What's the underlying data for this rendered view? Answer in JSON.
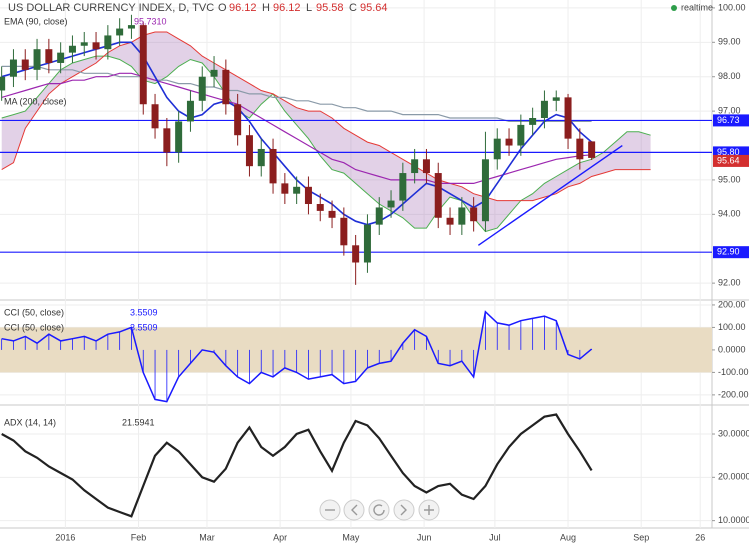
{
  "header": {
    "title": "US DOLLAR CURRENCY INDEX, D, TVC",
    "ohlc_letters": [
      "O",
      "H",
      "L",
      "C"
    ],
    "status": "realtime"
  },
  "chart_data": [
    {
      "type": "candlestick",
      "x": [
        -27,
        -22,
        -17,
        -12,
        -7,
        -2,
        3,
        8,
        13,
        18,
        23,
        28,
        33,
        38,
        43,
        48,
        53,
        58,
        63,
        68,
        73,
        78,
        83,
        88,
        93,
        98,
        103,
        108,
        113,
        118,
        123,
        128,
        133,
        138,
        143,
        148,
        153,
        158,
        163,
        168,
        173,
        178,
        183,
        188,
        193,
        198,
        203,
        208,
        213,
        218,
        223,
        228,
        233,
        238,
        243,
        248
      ],
      "xlim": [
        -27.7,
        274
      ],
      "xticks": [
        {
          "value": 0,
          "label": "2016"
        },
        {
          "value": 31,
          "label": "Feb"
        },
        {
          "value": 60,
          "label": "Mar"
        },
        {
          "value": 91,
          "label": "Apr"
        },
        {
          "value": 121,
          "label": "May"
        },
        {
          "value": 152,
          "label": "Jun"
        },
        {
          "value": 182,
          "label": "Jul"
        },
        {
          "value": 213,
          "label": "Aug"
        },
        {
          "value": 244,
          "label": "Sep"
        },
        {
          "value": 269,
          "label": "26"
        }
      ],
      "ylim": [
        91.51,
        100.23
      ],
      "yticks": [
        {
          "value": 92,
          "label": "92.00"
        },
        {
          "value": 94,
          "label": "94.00"
        },
        {
          "value": 95,
          "label": "95.00"
        },
        {
          "value": 97,
          "label": "97.00"
        },
        {
          "value": 98,
          "label": "98.00"
        },
        {
          "value": 99,
          "label": "99.00"
        },
        {
          "value": 100,
          "label": "100.00"
        }
      ],
      "up_color": "#2f6b3a",
      "down_color": "#8b1e1e",
      "ohlc": {
        "open": [
          97.6,
          98.0,
          98.5,
          98.2,
          98.8,
          98.4,
          98.7,
          98.9,
          99.0,
          98.8,
          99.2,
          99.4,
          99.5,
          97.2,
          96.5,
          95.8,
          96.7,
          97.3,
          98.0,
          98.2,
          97.2,
          96.3,
          95.4,
          95.9,
          94.9,
          94.6,
          94.8,
          94.3,
          94.1,
          93.9,
          93.1,
          92.6,
          93.7,
          94.2,
          94.4,
          95.2,
          95.6,
          95.2,
          93.9,
          93.7,
          94.2,
          93.8,
          95.6,
          96.2,
          96.0,
          96.6,
          96.8,
          97.3,
          97.4,
          96.2,
          96.12,
          null,
          null,
          null,
          null,
          null
        ],
        "high": [
          98.3,
          98.8,
          98.8,
          99.1,
          99.1,
          99.0,
          99.2,
          99.3,
          99.3,
          99.5,
          99.7,
          99.8,
          99.6,
          97.5,
          96.8,
          97.0,
          97.6,
          98.3,
          98.6,
          98.5,
          97.5,
          96.6,
          96.2,
          96.2,
          95.2,
          95.1,
          95.1,
          94.6,
          94.4,
          94.2,
          93.4,
          94.0,
          94.5,
          94.7,
          95.5,
          95.9,
          95.9,
          95.5,
          94.2,
          94.5,
          94.5,
          96.4,
          96.5,
          96.5,
          96.9,
          97.1,
          97.6,
          97.6,
          97.5,
          96.5,
          96.12,
          null,
          null,
          null,
          null,
          null
        ],
        "low": [
          97.3,
          97.7,
          97.9,
          97.9,
          98.1,
          98.1,
          98.4,
          98.6,
          98.5,
          98.5,
          98.9,
          99.1,
          96.9,
          96.2,
          95.4,
          95.5,
          96.4,
          97.0,
          97.7,
          96.9,
          96.0,
          95.1,
          95.1,
          94.6,
          94.3,
          94.3,
          94.0,
          93.8,
          93.6,
          92.8,
          91.95,
          92.3,
          93.4,
          93.9,
          94.1,
          94.9,
          94.9,
          93.6,
          93.4,
          93.4,
          93.5,
          93.5,
          95.3,
          95.7,
          95.7,
          96.3,
          96.5,
          97.0,
          95.9,
          95.3,
          95.58,
          null,
          null,
          null,
          null,
          null
        ],
        "close": [
          98.0,
          98.5,
          98.2,
          98.8,
          98.4,
          98.7,
          98.9,
          99.0,
          98.8,
          99.2,
          99.4,
          99.5,
          97.2,
          96.5,
          95.8,
          96.7,
          97.3,
          98.0,
          98.2,
          97.2,
          96.3,
          95.4,
          95.9,
          94.9,
          94.6,
          94.8,
          94.3,
          94.1,
          93.9,
          93.1,
          92.6,
          93.7,
          94.2,
          94.4,
          95.2,
          95.6,
          95.2,
          93.9,
          93.7,
          94.2,
          93.8,
          95.6,
          96.2,
          96.0,
          96.6,
          96.8,
          97.3,
          97.4,
          96.2,
          95.6,
          95.64,
          null,
          null,
          null,
          null,
          null
        ]
      },
      "cloud": {
        "fill": "rgba(150,90,170,0.28)",
        "span_a": {
          "color": "#4caf50",
          "values": [
            96.8,
            96.9,
            97.0,
            97.4,
            97.8,
            98.2,
            98.4,
            98.5,
            98.6,
            98.6,
            98.5,
            98.3,
            97.9,
            97.8,
            98.0,
            98.3,
            98.5,
            98.4,
            98.0,
            97.5,
            97.0,
            96.8,
            97.2,
            97.5,
            97.0,
            96.6,
            96.2,
            95.7,
            95.3,
            95.2,
            94.9,
            94.6,
            94.3,
            94.1,
            93.9,
            93.6,
            93.6,
            94.1,
            94.5,
            94.4,
            93.9,
            93.5,
            93.6,
            94.0,
            94.4,
            94.6,
            94.9,
            95.1,
            95.3,
            95.5,
            95.6,
            95.8,
            96.1,
            96.4,
            96.4,
            96.3
          ]
        },
        "span_b": {
          "color": "#e53935",
          "values": [
            95.3,
            95.5,
            96.5,
            97.0,
            97.5,
            97.8,
            98.0,
            98.2,
            98.4,
            98.7,
            98.9,
            99.0,
            99.2,
            99.3,
            99.3,
            99.1,
            98.9,
            98.6,
            98.4,
            98.2,
            98.0,
            97.8,
            97.6,
            97.5,
            97.3,
            97.1,
            97.0,
            97.0,
            96.8,
            96.5,
            96.3,
            96.1,
            96.0,
            95.8,
            95.6,
            95.4,
            95.2,
            95.0,
            94.9,
            94.8,
            94.6,
            94.5,
            94.4,
            94.4,
            94.4,
            94.4,
            94.5,
            94.6,
            94.8,
            94.9,
            95.1,
            95.2,
            95.3,
            95.3,
            95.3,
            95.3
          ]
        }
      },
      "series": [
        {
          "name": "MA (200, close)",
          "color": "#8a9aa8",
          "values": [
            98.3,
            98.3,
            98.3,
            98.3,
            98.2,
            98.2,
            98.2,
            98.1,
            98.1,
            98.1,
            98.0,
            98.0,
            98.0,
            97.9,
            97.9,
            97.8,
            97.8,
            97.7,
            97.7,
            97.6,
            97.6,
            97.5,
            97.5,
            97.4,
            97.4,
            97.3,
            97.3,
            97.2,
            97.2,
            97.1,
            97.1,
            97.0,
            97.0,
            97.0,
            96.9,
            96.9,
            96.9,
            96.9,
            96.8,
            96.8,
            96.8,
            96.8,
            96.8,
            96.7,
            96.7,
            96.7,
            96.7,
            96.7,
            96.7,
            96.7,
            96.7,
            null,
            null,
            null,
            null,
            null
          ]
        },
        {
          "name": "EMA (90, close)",
          "color": "#9c27b0",
          "value_label": "95.7310",
          "values": [
            97.4,
            97.5,
            97.6,
            97.7,
            97.8,
            97.8,
            97.9,
            97.9,
            98.0,
            98.0,
            98.1,
            98.1,
            98.0,
            97.9,
            97.8,
            97.7,
            97.6,
            97.5,
            97.4,
            97.3,
            97.2,
            97.0,
            96.8,
            96.6,
            96.4,
            96.2,
            96.0,
            95.8,
            95.6,
            95.5,
            95.3,
            95.2,
            95.1,
            95.0,
            95.0,
            95.0,
            95.0,
            94.9,
            94.9,
            94.9,
            94.9,
            95.0,
            95.1,
            95.2,
            95.3,
            95.4,
            95.5,
            95.6,
            95.65,
            95.7,
            95.731,
            null,
            null,
            null,
            null,
            null
          ]
        },
        {
          "color": "#1f2fd6",
          "values": [
            98.0,
            98.1,
            98.2,
            98.3,
            98.4,
            98.5,
            98.6,
            98.7,
            98.8,
            98.9,
            99.0,
            99.0,
            98.6,
            98.0,
            97.4,
            97.0,
            96.8,
            96.9,
            97.2,
            97.3,
            97.1,
            96.7,
            96.2,
            95.8,
            95.4,
            95.0,
            94.7,
            94.5,
            94.3,
            94.0,
            93.8,
            93.7,
            93.8,
            94.0,
            94.3,
            94.6,
            94.9,
            94.8,
            94.6,
            94.4,
            94.2,
            94.4,
            94.9,
            95.4,
            95.9,
            96.3,
            96.7,
            96.9,
            96.8,
            96.4,
            96.1,
            null,
            null,
            null,
            null,
            null
          ]
        }
      ],
      "hlines": [
        {
          "value": 96.73,
          "label": "96.73"
        },
        {
          "value": 95.8,
          "label": "95.80"
        },
        {
          "value": 92.9,
          "label": "92.90"
        }
      ],
      "hline_color": "#1a1aff",
      "last_price_color": "#d32f2f",
      "trendline": {
        "x": [
          175,
          236
        ],
        "y": [
          93.1,
          96.0
        ],
        "color": "#1a1aff"
      }
    },
    {
      "type": "line",
      "ylim": [
        -245,
        222
      ],
      "yticks": [
        {
          "value": 200,
          "label": "200.00"
        },
        {
          "value": 100,
          "label": "100.00"
        },
        {
          "value": 0,
          "label": "0.0000"
        },
        {
          "value": -100,
          "label": "-100.00"
        },
        {
          "value": -200,
          "label": "-200.00"
        }
      ],
      "band": [
        -100,
        100
      ],
      "band_color": "#e9dcc3",
      "series": [
        {
          "name": "CCI (50, close)",
          "color": "#1a1aff",
          "values": [
            50,
            40,
            60,
            30,
            70,
            40,
            50,
            60,
            40,
            70,
            80,
            100,
            -100,
            -220,
            -230,
            -120,
            -60,
            0,
            -10,
            -70,
            -120,
            -150,
            -100,
            -120,
            -80,
            -100,
            -130,
            -120,
            -110,
            -150,
            -140,
            -80,
            -60,
            -50,
            30,
            90,
            60,
            -60,
            -70,
            -50,
            -120,
            170,
            120,
            110,
            130,
            140,
            150,
            130,
            -20,
            -40,
            3.5509,
            null,
            null,
            null,
            null,
            null
          ]
        }
      ]
    },
    {
      "type": "line",
      "ylim": [
        8.3,
        36.7
      ],
      "yticks": [
        {
          "value": 30,
          "label": "30.0000"
        },
        {
          "value": 20,
          "label": "20.0000"
        },
        {
          "value": 10,
          "label": "10.0000"
        }
      ],
      "series": [
        {
          "name": "ADX (14, 14)",
          "color": "#222222",
          "values": [
            30,
            28.5,
            26,
            24.5,
            22.5,
            21,
            19.5,
            17,
            15,
            13,
            12,
            11,
            18,
            25,
            28,
            26,
            23,
            20,
            19,
            22,
            28,
            31.5,
            27,
            25,
            27,
            30,
            31,
            26,
            21.5,
            28,
            33,
            32,
            29,
            25,
            21,
            18,
            16.5,
            18,
            18.5,
            16,
            15,
            18,
            23,
            27,
            30,
            32,
            34,
            34.5,
            30,
            26,
            21.5941,
            null,
            null,
            null,
            null,
            null
          ]
        }
      ]
    }
  ]
}
